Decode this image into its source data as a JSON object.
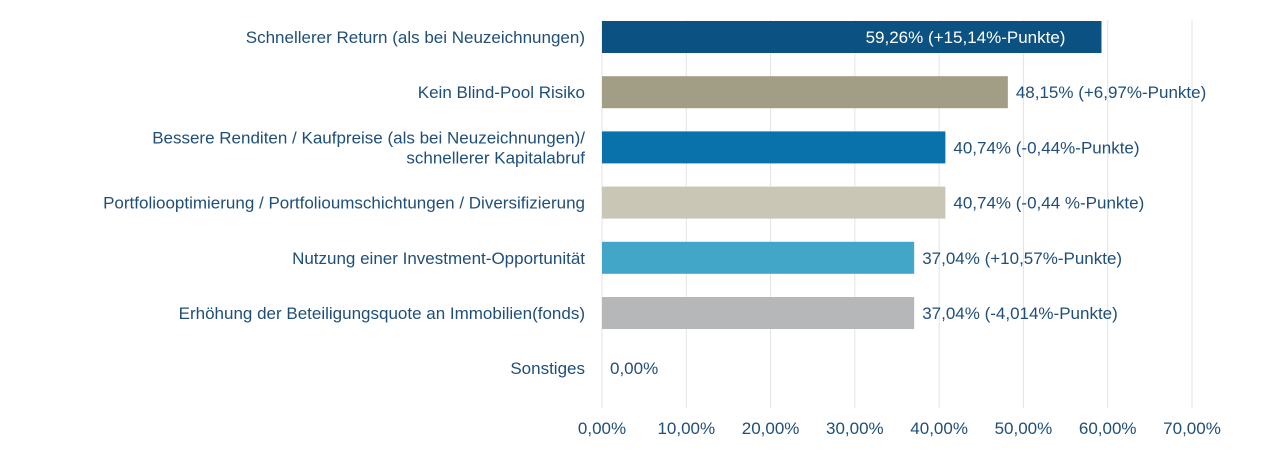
{
  "chart_data": {
    "type": "bar",
    "orientation": "horizontal",
    "categories": [
      [
        "Schnellerer Return (als bei Neuzeichnungen)"
      ],
      [
        "Kein Blind-Pool Risiko"
      ],
      [
        "Bessere Renditen / Kaufpreise (als bei Neuzeichnungen)/",
        "schnellerer Kapitalabruf"
      ],
      [
        "Portfoliooptimierung / Portfolioumschichtungen / Diversifizierung"
      ],
      [
        "Nutzung einer Investment-Opportunität"
      ],
      [
        "Erhöhung der Beteiligungsquote an Immobilien(fonds)"
      ],
      [
        "Sonstiges"
      ]
    ],
    "values": [
      59.26,
      48.15,
      40.74,
      40.74,
      37.04,
      37.04,
      0.0
    ],
    "data_labels": [
      "59,26% (+15,14%-Punkte)",
      "48,15% (+6,97%-Punkte)",
      "40,74% (-0,44%-Punkte)",
      "40,74% (-0,44 %-Punkte)",
      "37,04% (+10,57%-Punkte)",
      "37,04% (-4,014%-Punkte)",
      "0,00%"
    ],
    "data_label_inside": [
      true,
      false,
      false,
      false,
      false,
      false,
      false
    ],
    "colors": [
      "#0b5283",
      "#a29d85",
      "#0a72ab",
      "#c9c6b6",
      "#42a6c8",
      "#b5b7b9",
      "#ffffff"
    ],
    "xlim": [
      0,
      70
    ],
    "xticks": [
      "0,00%",
      "10,00%",
      "20,00%",
      "30,00%",
      "40,00%",
      "50,00%",
      "60,00%",
      "70,00%"
    ],
    "grid": true,
    "title": "",
    "xlabel": "",
    "ylabel": ""
  }
}
